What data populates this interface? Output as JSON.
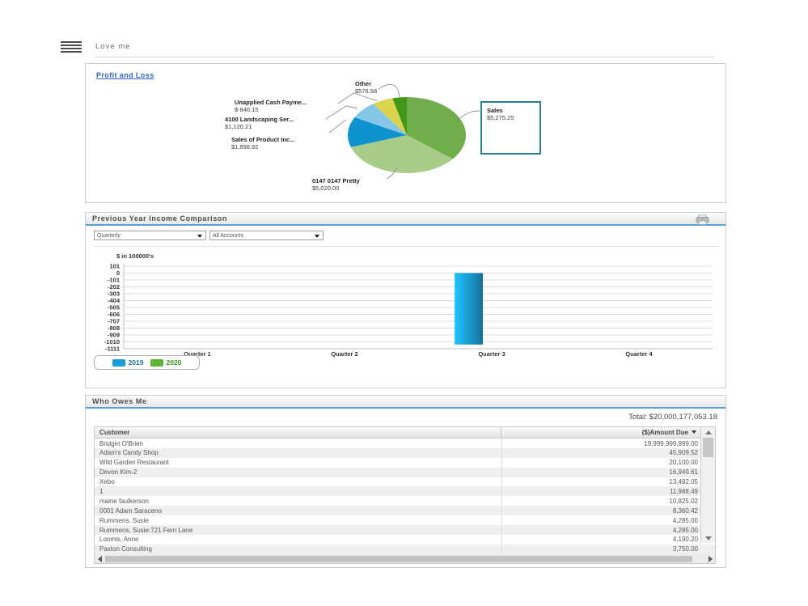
{
  "header": {
    "title": "Love me"
  },
  "profit_loss": {
    "link_label": "Profit and Loss",
    "chart_data": {
      "type": "pie",
      "title": "Profit and Loss",
      "slices": [
        {
          "label": "Sales",
          "value": 5275.25,
          "display": "$5,275.25",
          "color": "#6fae4b",
          "selected": true
        },
        {
          "label": "0147 0147 Pretty",
          "value": 5020.0,
          "display": "$5,020.00",
          "color": "#a8cd88"
        },
        {
          "label": "Sales of Product Inc...",
          "value": 1898.92,
          "display": "$1,898.92",
          "color": "#0f93cf"
        },
        {
          "label": "4100 Landscaping Ser...",
          "value": 1120.21,
          "display": "$1,120.21",
          "color": "#85c6e9"
        },
        {
          "label": "Unapplied Cash Payme...",
          "value": -846.15,
          "display": "$-846.15",
          "color": "#d9d44b"
        },
        {
          "label": "Other",
          "value": 576.58,
          "display": "$576.58",
          "color": "#3f9617"
        }
      ]
    }
  },
  "income_comparison": {
    "title": "Previous Year Income Comparison",
    "filters": {
      "period": "Quarterly",
      "accounts": "All Accounts"
    },
    "chart_data": {
      "type": "bar",
      "axis_title": "$ in 100000's",
      "categories": [
        "Quarter 1",
        "Quarter 2",
        "Quarter 3",
        "Quarter 4"
      ],
      "series": [
        {
          "name": "2019",
          "color": "#1b9dd9",
          "label_color": "#16789e",
          "values": [
            0,
            0,
            -1050,
            0
          ]
        },
        {
          "name": "2020",
          "color": "#5db430",
          "label_color": "#3f8f1d",
          "values": [
            0,
            0,
            0,
            0
          ]
        }
      ],
      "ylim": [
        -1111,
        101
      ],
      "yticks": [
        101,
        0,
        -101,
        -202,
        -303,
        -404,
        -505,
        -606,
        -707,
        -808,
        -909,
        -1010,
        -1111
      ],
      "grid": true,
      "legend_position": "bottom-left"
    }
  },
  "who_owes_me": {
    "title": "Who Owes Me",
    "total_label": "Total: $20,000,177,053.18",
    "table": {
      "columns": [
        "Customer",
        "($)Amount Due"
      ],
      "rows": [
        [
          "Bridget O'Brien",
          "19,999,999,999.00"
        ],
        [
          "Adam's Candy Shop",
          "45,909.52"
        ],
        [
          "Wild Garden Restaurant",
          "20,100.00"
        ],
        [
          "Devon Kim-2",
          "16,949.61"
        ],
        [
          "Xebo",
          "13,492.05"
        ],
        [
          "1",
          "11,988.49"
        ],
        [
          "maine faulkerson",
          "10,825.02"
        ],
        [
          "0001 Adam Saraceno",
          "8,360.42"
        ],
        [
          "Rummens, Susie",
          "4,285.00"
        ],
        [
          "Rummens, Susie:721 Fern Lane",
          "4,285.00"
        ],
        [
          "Loomis, Anne",
          "4,190.20"
        ],
        [
          "Paxton Consulting",
          "3,750.00"
        ]
      ]
    }
  }
}
